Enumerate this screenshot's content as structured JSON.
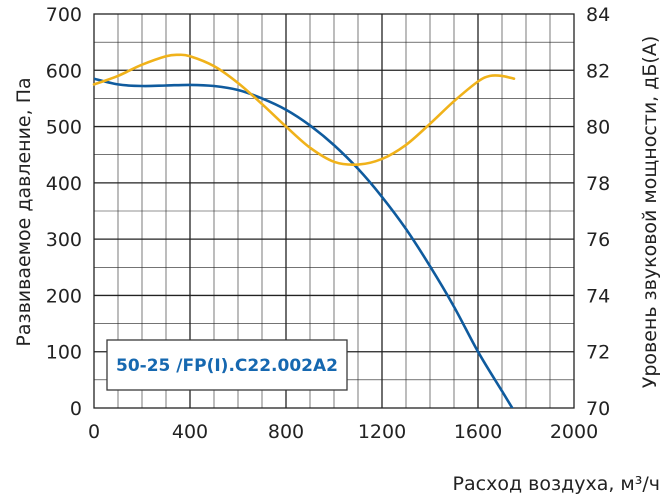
{
  "colors": {
    "pressure": "#0f5b9e",
    "sound": "#f0b21a",
    "grid": "#222222",
    "legend_text": "#1668b0",
    "legend_border": "#3a3a3a"
  },
  "chart_data": {
    "type": "line",
    "xlabel": "Расход воздуха, м³/ч",
    "ylabel": "Развиваемое давление, Па",
    "y2label": "Уровень звуковой мощности, дБ(А)",
    "xlim": [
      0,
      2000
    ],
    "ylim": [
      0,
      700
    ],
    "y2lim": [
      70,
      84
    ],
    "x_ticks": [
      "0",
      "400",
      "800",
      "1200",
      "1600",
      "2000"
    ],
    "y_ticks": [
      "0",
      "100",
      "200",
      "300",
      "400",
      "500",
      "600",
      "700"
    ],
    "y2_ticks": [
      "70",
      "72",
      "74",
      "76",
      "78",
      "80",
      "82",
      "84"
    ],
    "grid": true,
    "legend": "50-25 /FP(I).C22.002A2",
    "series": [
      {
        "axis": "left",
        "x": [
          0,
          100,
          200,
          300,
          400,
          500,
          600,
          700,
          800,
          900,
          1000,
          1100,
          1200,
          1300,
          1400,
          1500,
          1600,
          1700,
          1750
        ],
        "values": [
          585,
          575,
          572,
          573,
          574,
          572,
          565,
          550,
          530,
          502,
          467,
          425,
          375,
          318,
          252,
          180,
          100,
          30,
          -5
        ]
      },
      {
        "axis": "right",
        "x": [
          0,
          100,
          200,
          300,
          350,
          400,
          500,
          600,
          700,
          800,
          900,
          1000,
          1100,
          1200,
          1300,
          1400,
          1500,
          1600,
          1650,
          1700,
          1750
        ],
        "values": [
          81.5,
          81.8,
          82.2,
          82.5,
          82.55,
          82.5,
          82.15,
          81.55,
          80.8,
          80.0,
          79.25,
          78.75,
          78.65,
          78.85,
          79.35,
          80.1,
          80.9,
          81.6,
          81.8,
          81.8,
          81.7
        ]
      }
    ]
  }
}
